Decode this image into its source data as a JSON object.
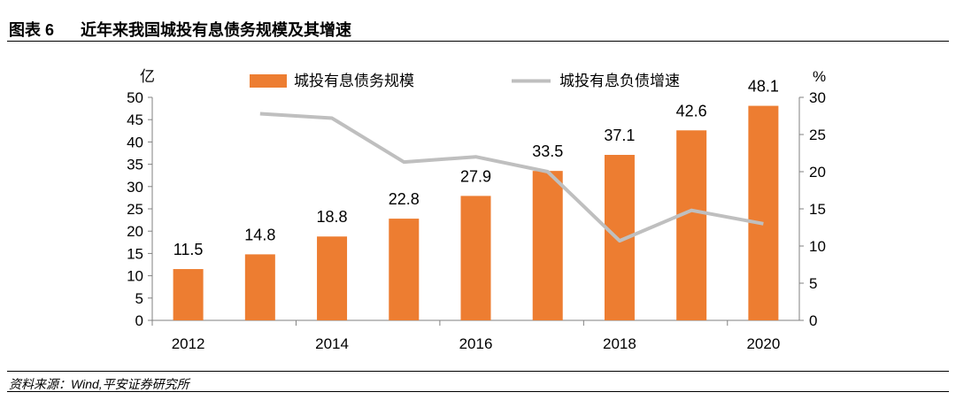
{
  "header": {
    "figure_label": "图表 6",
    "title": "近年来我国城投有息债务规模及其增速"
  },
  "footer": {
    "source": "资料来源：Wind,平安证券研究所"
  },
  "colors": {
    "bar": "#ED7D31",
    "line": "#BFBFBF",
    "axis": "#808080"
  },
  "chart_data": {
    "type": "bar+line",
    "title": "近年来我国城投有息债务规模及其增速",
    "left_axis_unit": "亿",
    "right_axis_unit": "%",
    "ylim_left": [
      0,
      50
    ],
    "ylim_right": [
      0,
      30
    ],
    "left_ticks": [
      0,
      5,
      10,
      15,
      20,
      25,
      30,
      35,
      40,
      45,
      50
    ],
    "right_ticks": [
      0,
      5,
      10,
      15,
      20,
      25,
      30
    ],
    "x": [
      2012,
      2013,
      2014,
      2015,
      2016,
      2017,
      2018,
      2019,
      2020
    ],
    "x_tick_labels": [
      "2012",
      "",
      "2014",
      "",
      "2016",
      "",
      "2018",
      "",
      "2020"
    ],
    "series": [
      {
        "name": "城投有息债务规模",
        "type": "bar",
        "axis": "left",
        "values": [
          11.5,
          14.8,
          18.8,
          22.8,
          27.9,
          33.5,
          37.1,
          42.6,
          48.1
        ],
        "labels": [
          "11.5",
          "14.8",
          "18.8",
          "22.8",
          "27.9",
          "33.5",
          "37.1",
          "42.6",
          "48.1"
        ]
      },
      {
        "name": "城投有息负债增速",
        "type": "line",
        "axis": "right",
        "values": [
          null,
          27.8,
          27.2,
          21.3,
          22.0,
          20.0,
          10.7,
          14.8,
          13.0
        ]
      }
    ],
    "legend_position": "top"
  }
}
